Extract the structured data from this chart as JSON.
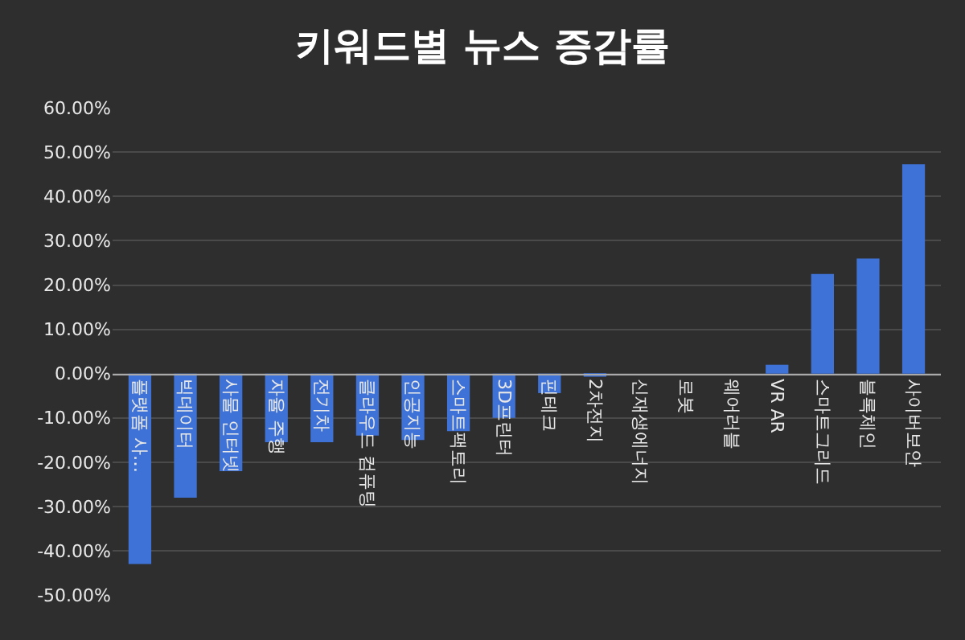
{
  "chart_data": {
    "type": "bar",
    "title": "키워드별 뉴스 증감률",
    "categories": [
      "플랫폼 사…",
      "빅데이터",
      "사물 인터넷",
      "자율 주행",
      "전기차",
      "클라우드 컴퓨팅",
      "인공지능",
      "스마트팩토리",
      "3D프린터",
      "핀테크",
      "2차전지",
      "신재생에너지",
      "로봇",
      "웨어러블",
      "VR AR",
      "스마트그리드",
      "블록체인",
      "사이버보안"
    ],
    "values": [
      -43,
      -28,
      -22,
      -15.5,
      -15.5,
      -14,
      -15,
      -13,
      -10,
      -4.4,
      -0.7,
      0,
      0,
      0,
      2,
      22.5,
      26,
      47.3
    ],
    "color": "#3f72d6",
    "ylim": [
      -50,
      60
    ],
    "yticks": [
      {
        "value": 60,
        "label": "60.00%"
      },
      {
        "value": 50,
        "label": "50.00%"
      },
      {
        "value": 40,
        "label": "40.00%"
      },
      {
        "value": 30,
        "label": "30.00%"
      },
      {
        "value": 20,
        "label": "20.00%"
      },
      {
        "value": 10,
        "label": "10.00%"
      },
      {
        "value": 0,
        "label": "0.00%"
      },
      {
        "value": -10,
        "label": "-10.00%"
      },
      {
        "value": -20,
        "label": "-20.00%"
      },
      {
        "value": -30,
        "label": "-30.00%"
      },
      {
        "value": -40,
        "label": "-40.00%"
      },
      {
        "value": -50,
        "label": "-50.00%"
      }
    ],
    "grid": "y"
  }
}
